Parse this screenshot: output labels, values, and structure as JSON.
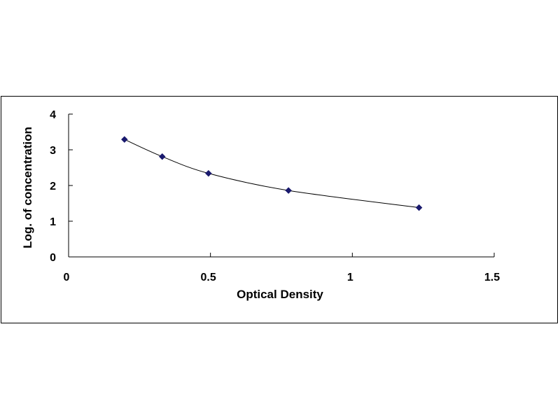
{
  "chart_data": {
    "type": "scatter",
    "title": "",
    "xlabel": "Optical Density",
    "ylabel": "Log. of concentration",
    "xlim": [
      0,
      1.5
    ],
    "ylim": [
      0,
      4
    ],
    "x_ticks": [
      "0",
      "0.5",
      "1",
      "1.5"
    ],
    "y_ticks": [
      "0",
      "1",
      "2",
      "3",
      "4"
    ],
    "grid": false,
    "legend": "none",
    "marker": "diamond",
    "trendline": "smooth curve",
    "series": [
      {
        "x": [
          0.197,
          0.33,
          0.493,
          0.775,
          1.235
        ],
        "y": [
          3.29,
          2.81,
          2.34,
          1.86,
          1.38
        ]
      }
    ],
    "colors": {
      "marker": "#1a1a6e",
      "line": "#000000",
      "axis": "#000000"
    }
  }
}
